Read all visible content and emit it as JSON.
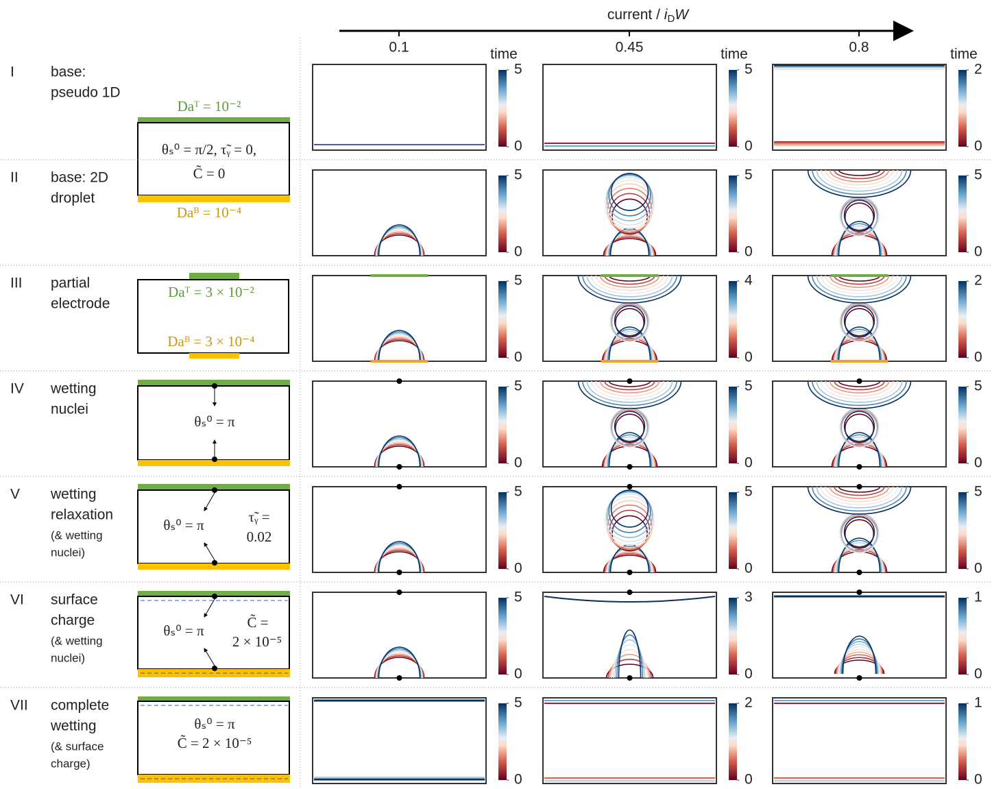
{
  "header": {
    "axis_label": [
      "current / ",
      "i",
      "D",
      "W"
    ],
    "columns": [
      "0.1",
      "0.45",
      "0.8"
    ],
    "colorbar_label": "time"
  },
  "rows": [
    {
      "numeral": "I",
      "label": [
        "base:",
        "pseudo 1D"
      ],
      "colorbars": [
        [
          0,
          5
        ],
        [
          0,
          5
        ],
        [
          0,
          2
        ]
      ],
      "schematic": {
        "top": "Daᵀ = 10⁻²",
        "middle": [
          "θₛ⁰ = π/2, τ̃ᵧ = 0,",
          "C̃ = 0"
        ],
        "bottom": "Daᴮ = 10⁻⁴"
      }
    },
    {
      "numeral": "II",
      "label": [
        "base: 2D",
        "droplet"
      ],
      "colorbars": [
        [
          0,
          5
        ],
        [
          0,
          5
        ],
        [
          0,
          5
        ]
      ]
    },
    {
      "numeral": "III",
      "label": [
        "partial",
        "electrode"
      ],
      "colorbars": [
        [
          0,
          5
        ],
        [
          0,
          4
        ],
        [
          0,
          2
        ]
      ],
      "schematic": {
        "top": "Daᵀ = 3 × 10⁻²",
        "bottom": "Daᴮ = 3 × 10⁻⁴"
      }
    },
    {
      "numeral": "IV",
      "label": [
        "wetting",
        "nuclei"
      ],
      "colorbars": [
        [
          0,
          5
        ],
        [
          0,
          5
        ],
        [
          0,
          5
        ]
      ],
      "schematic": {
        "middle": [
          "θₛ⁰ = π"
        ]
      }
    },
    {
      "numeral": "V",
      "label": [
        "wetting",
        "relaxation"
      ],
      "note": [
        "(& wetting",
        "nuclei)"
      ],
      "colorbars": [
        [
          0,
          5
        ],
        [
          0,
          5
        ],
        [
          0,
          5
        ]
      ],
      "schematic": {
        "middle": [
          "θₛ⁰ = π"
        ],
        "side": [
          "τ̃ᵧ =",
          "0.02"
        ]
      }
    },
    {
      "numeral": "VI",
      "label": [
        "surface",
        "charge"
      ],
      "note": [
        "(& wetting",
        "nuclei)"
      ],
      "colorbars": [
        [
          0,
          5
        ],
        [
          0,
          3
        ],
        [
          0,
          1
        ]
      ],
      "schematic": {
        "middle": [
          "θₛ⁰ = π"
        ],
        "side": [
          "C̃ =",
          "2 × 10⁻⁵"
        ]
      }
    },
    {
      "numeral": "VII",
      "label": [
        "complete",
        "wetting"
      ],
      "note": [
        "(& surface",
        "charge)"
      ],
      "colorbars": [
        [
          0,
          5
        ],
        [
          0,
          2
        ],
        [
          0,
          1
        ]
      ],
      "schematic": {
        "middle": [
          "θₛ⁰ = π",
          "C̃ = 2 × 10⁻⁵"
        ]
      }
    }
  ]
}
